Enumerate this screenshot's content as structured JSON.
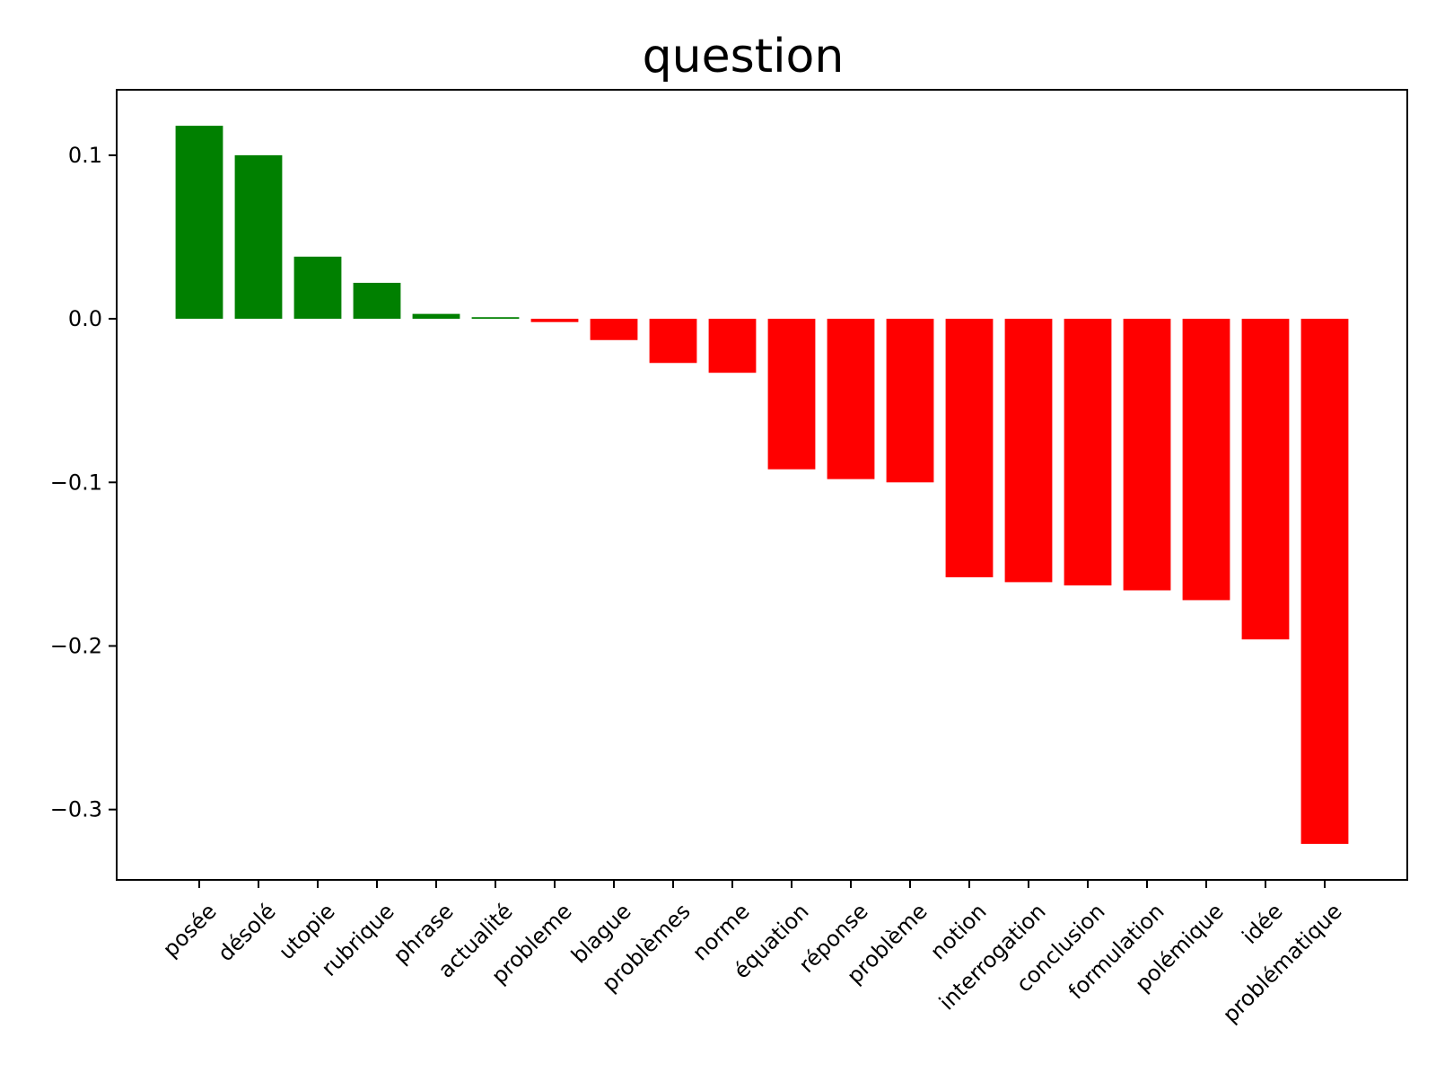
{
  "chart_data": {
    "type": "bar",
    "title": "question",
    "xlabel": "",
    "ylabel": "",
    "categories": [
      "posée",
      "désolé",
      "utopie",
      "rubrique",
      "phrase",
      "actualité",
      "probleme",
      "blague",
      "problèmes",
      "norme",
      "équation",
      "réponse",
      "problème",
      "notion",
      "interrogation",
      "conclusion",
      "formulation",
      "polémique",
      "idée",
      "problématique"
    ],
    "values": [
      0.118,
      0.1,
      0.038,
      0.022,
      0.003,
      0.001,
      -0.002,
      -0.013,
      -0.027,
      -0.033,
      -0.092,
      -0.098,
      -0.1,
      -0.158,
      -0.161,
      -0.163,
      -0.166,
      -0.172,
      -0.196,
      -0.321
    ],
    "positive_color": "#008000",
    "negative_color": "#ff0000",
    "ylim": [
      -0.343,
      0.14
    ],
    "yticks": [
      0.1,
      0.0,
      -0.1,
      -0.2,
      -0.3
    ],
    "ytick_labels": [
      "0.1",
      "0.0",
      "−0.1",
      "−0.2",
      "−0.3"
    ],
    "grid": false,
    "legend": "none"
  }
}
